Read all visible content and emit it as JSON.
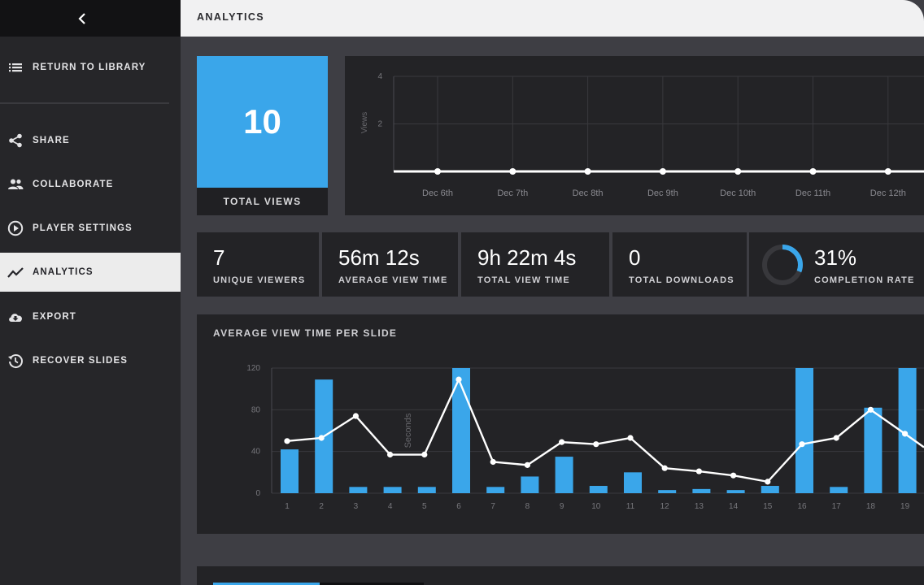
{
  "sidebar": {
    "back_icon": "chevron-left-icon",
    "items": [
      {
        "label": "RETURN TO LIBRARY",
        "icon": "list-icon"
      },
      {
        "label": "SHARE",
        "icon": "share-icon"
      },
      {
        "label": "COLLABORATE",
        "icon": "people-icon"
      },
      {
        "label": "PLAYER SETTINGS",
        "icon": "play-circle-icon"
      },
      {
        "label": "ANALYTICS",
        "icon": "trend-icon",
        "active": true
      },
      {
        "label": "EXPORT",
        "icon": "cloud-download-icon"
      },
      {
        "label": "RECOVER SLIDES",
        "icon": "history-icon"
      }
    ]
  },
  "header": {
    "title": "ANALYTICS"
  },
  "total_views": {
    "value": "10",
    "label": "TOTAL VIEWS"
  },
  "stats": [
    {
      "value": "7",
      "label": "UNIQUE VIEWERS"
    },
    {
      "value": "56m 12s",
      "label": "AVERAGE VIEW TIME"
    },
    {
      "value": "9h 22m 4s",
      "label": "TOTAL VIEW TIME"
    },
    {
      "value": "0",
      "label": "TOTAL DOWNLOADS"
    },
    {
      "value": "31%",
      "label": "COMPLETION RATE",
      "ring_fraction": 0.31
    }
  ],
  "colors": {
    "accent": "#3aa6ea",
    "panel": "#232326",
    "background": "#3e3e44"
  },
  "chart_data": [
    {
      "type": "line",
      "title": "",
      "xlabel": "",
      "ylabel": "Views",
      "categories": [
        "Dec 6th",
        "Dec 7th",
        "Dec 8th",
        "Dec 9th",
        "Dec 10th",
        "Dec 11th",
        "Dec 12th"
      ],
      "values": [
        0,
        0,
        0,
        0,
        0,
        0,
        0
      ],
      "ylim": [
        0,
        4
      ],
      "yticks": [
        2,
        4
      ]
    },
    {
      "type": "bar",
      "title": "AVERAGE VIEW TIME PER SLIDE",
      "xlabel": "",
      "ylabel": "Seconds",
      "categories": [
        "1",
        "2",
        "3",
        "4",
        "5",
        "6",
        "7",
        "8",
        "9",
        "10",
        "11",
        "12",
        "13",
        "14",
        "15",
        "16",
        "17",
        "18",
        "19"
      ],
      "series": [
        {
          "name": "bars",
          "values": [
            42,
            109,
            6,
            6,
            6,
            120,
            6,
            16,
            35,
            7,
            20,
            3,
            4,
            3,
            7,
            120,
            6,
            82,
            120
          ]
        },
        {
          "name": "line",
          "values": [
            50,
            53,
            74,
            37,
            37,
            109,
            30,
            27,
            49,
            47,
            53,
            24,
            21,
            17,
            11,
            47,
            53,
            80,
            57
          ]
        }
      ],
      "ylim": [
        0,
        120
      ],
      "yticks": [
        0,
        40,
        80,
        120
      ]
    }
  ]
}
